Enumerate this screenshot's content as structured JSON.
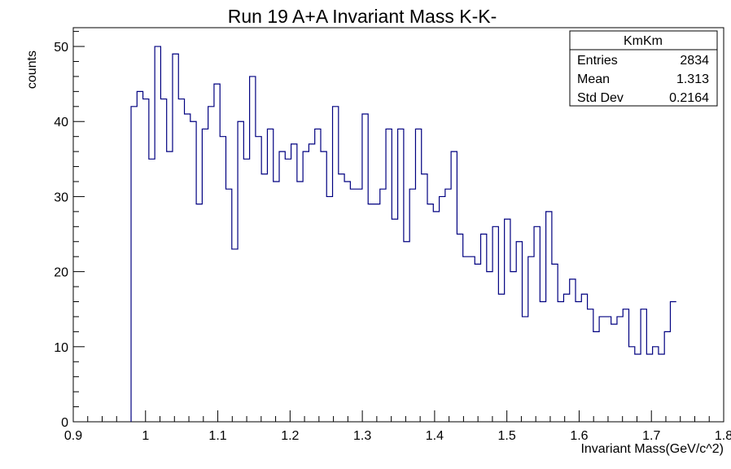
{
  "chart_data": {
    "type": "histogram",
    "title": "Run 19 A+A Invariant Mass K-K-",
    "xlabel": "Invariant Mass(GeV/c^2)",
    "ylabel": "counts",
    "xlim": [
      0.9,
      1.8
    ],
    "ylim": [
      0,
      52.5
    ],
    "x_ticks": [
      "0.9",
      "1",
      "1.1",
      "1.2",
      "1.3",
      "1.4",
      "1.5",
      "1.6",
      "1.7",
      "1.8"
    ],
    "y_ticks": [
      "0",
      "10",
      "20",
      "30",
      "40",
      "50"
    ],
    "bin_start": 0.98,
    "bin_width": 0.0082,
    "bin_counts": [
      42,
      44,
      43,
      35,
      50,
      43,
      36,
      49,
      43,
      41,
      40,
      29,
      39,
      42,
      45,
      38,
      31,
      23,
      40,
      35,
      46,
      38,
      33,
      39,
      32,
      36,
      35,
      37,
      32,
      36,
      37,
      39,
      36,
      30,
      42,
      33,
      32,
      31,
      31,
      41,
      29,
      29,
      31,
      39,
      27,
      39,
      24,
      31,
      39,
      33,
      29,
      28,
      30,
      31,
      36,
      25,
      22,
      22,
      21,
      25,
      20,
      26,
      17,
      27,
      20,
      24,
      14,
      22,
      26,
      16,
      28,
      21,
      16,
      17,
      19,
      16,
      17,
      15,
      12,
      14,
      14,
      13,
      14,
      15,
      10,
      9,
      15,
      9,
      10,
      9,
      12,
      16
    ],
    "line_color": "#000080",
    "stats_box": {
      "name": "KmKm",
      "rows": [
        {
          "label": "Entries",
          "value": "2834"
        },
        {
          "label": "Mean",
          "value": "1.313"
        },
        {
          "label": "Std Dev",
          "value": "0.2164"
        }
      ]
    }
  }
}
